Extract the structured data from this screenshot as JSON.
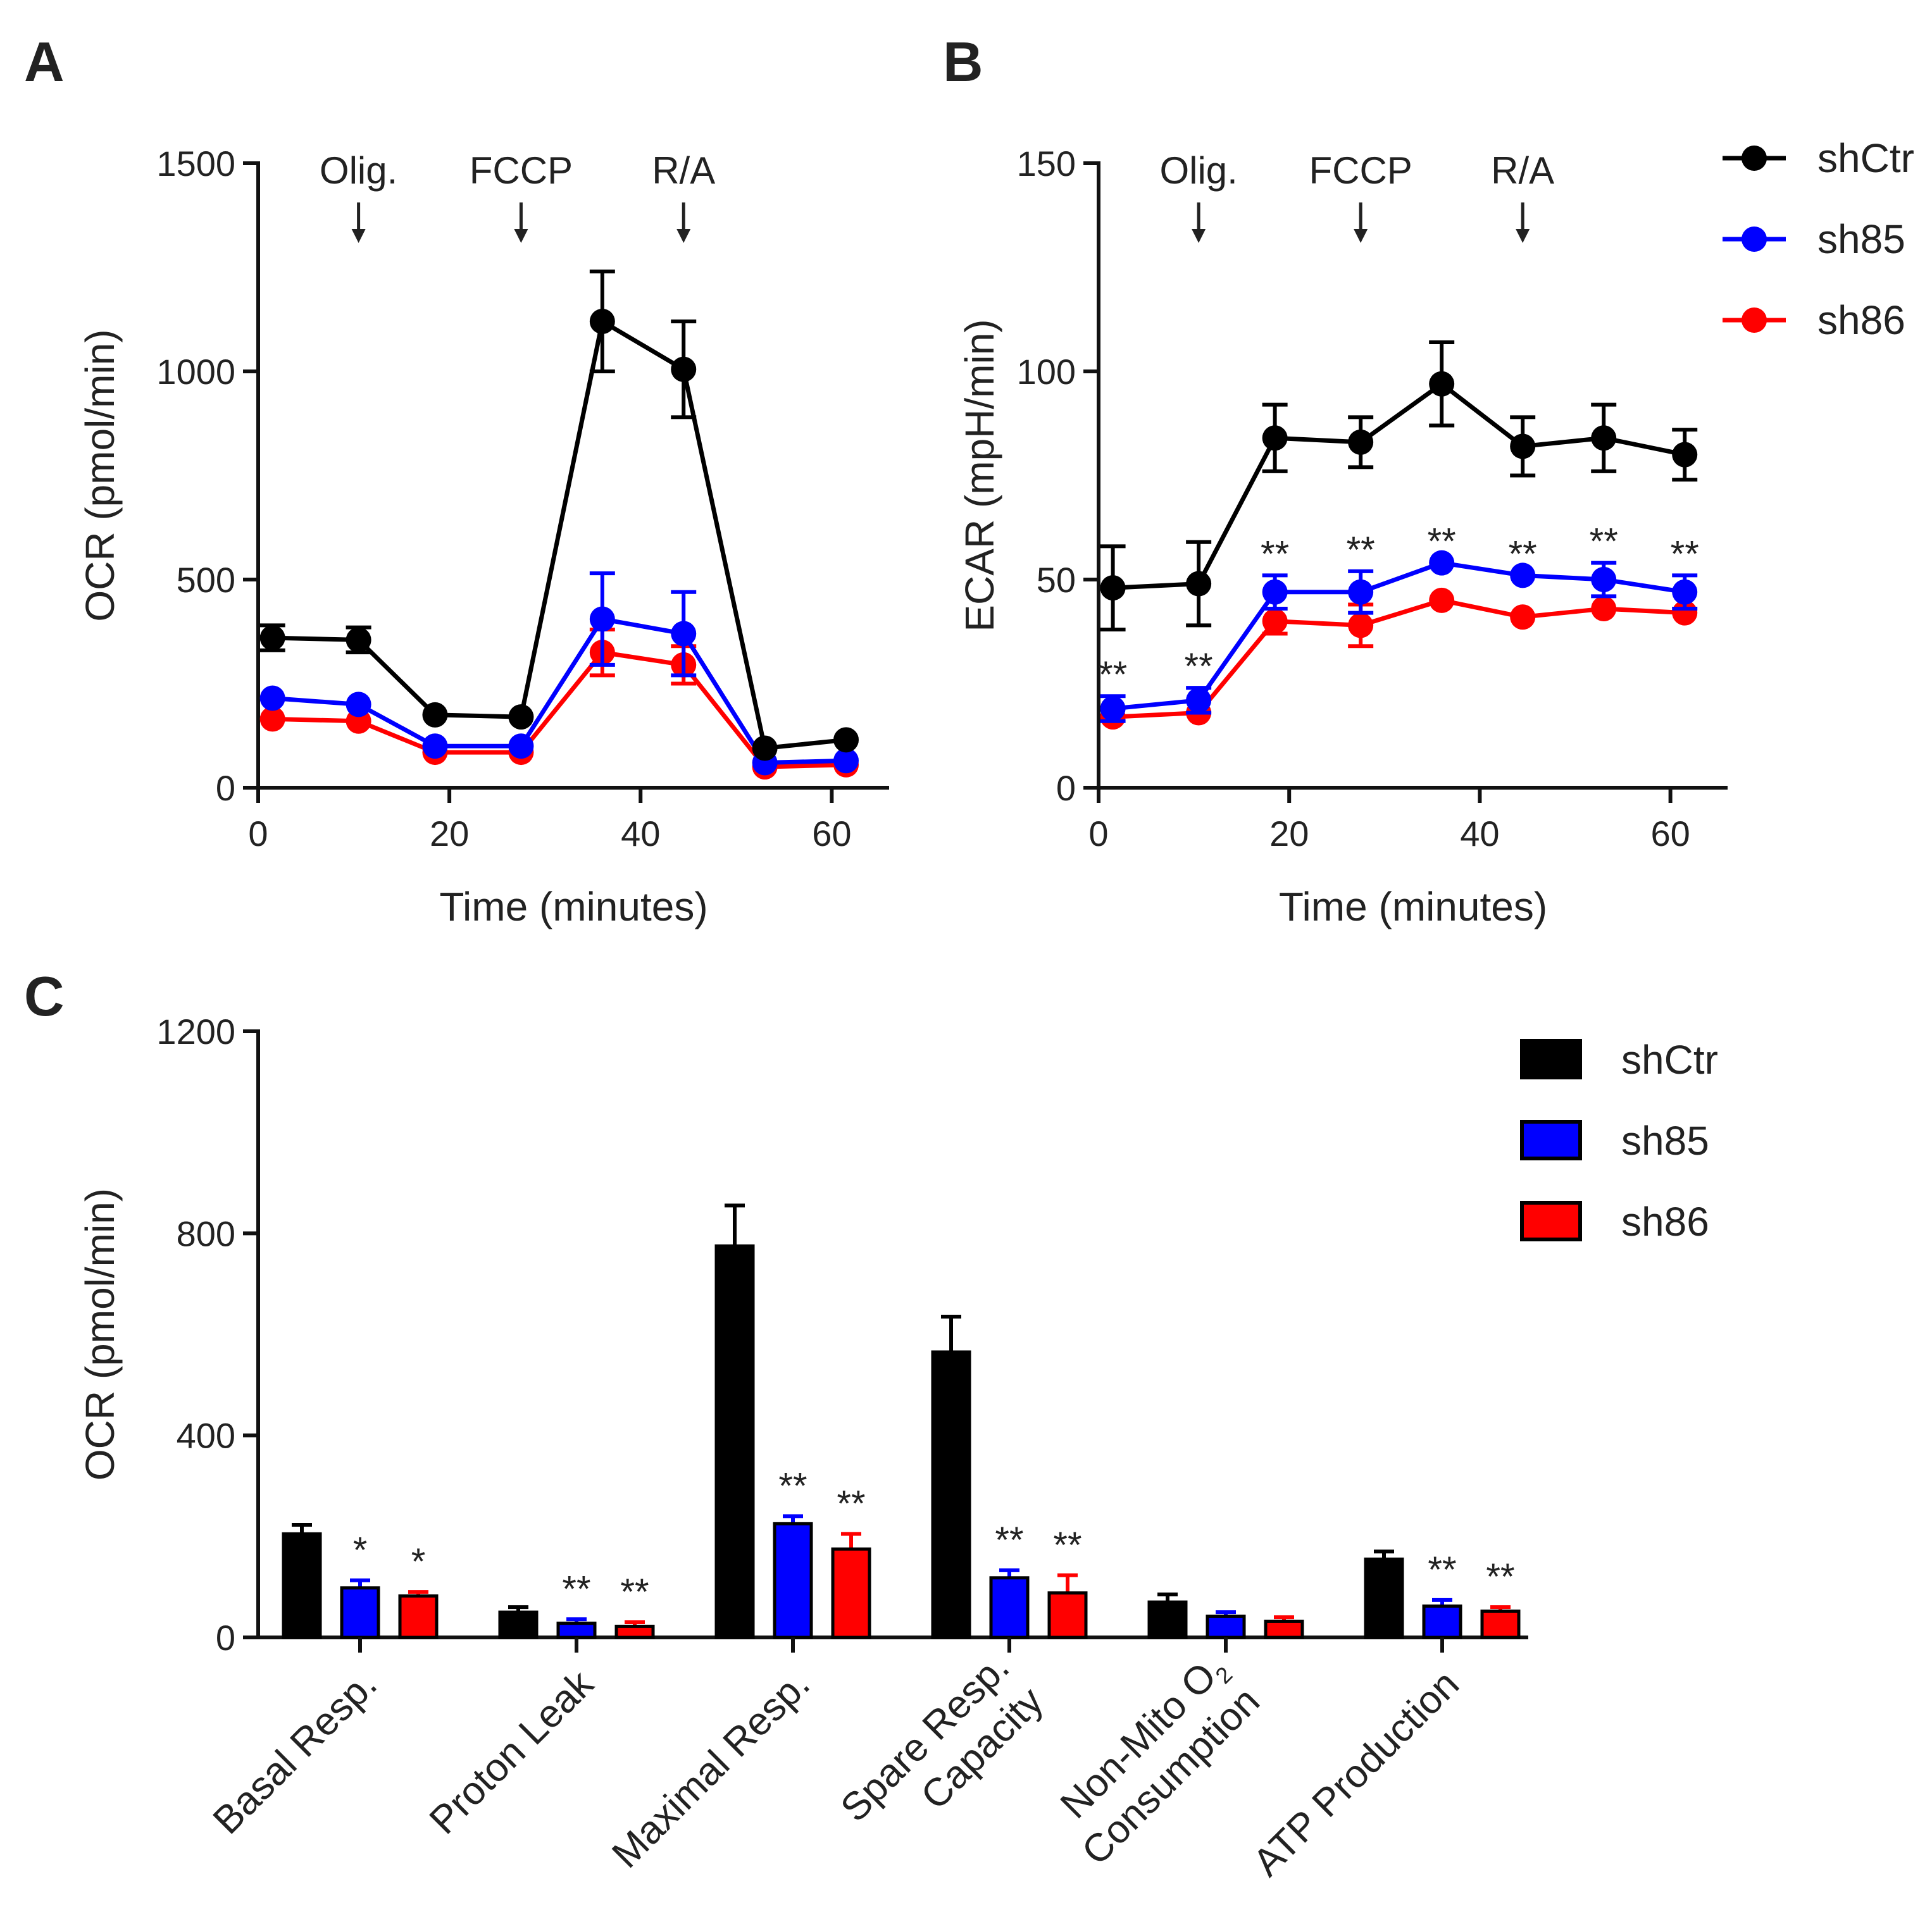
{
  "chart_data": [
    {
      "panel": "A",
      "type": "line",
      "title": "",
      "xlabel": "Time (minutes)",
      "ylabel": "OCR (pmol/min)",
      "xlim": [
        0,
        66
      ],
      "ylim": [
        0,
        1500
      ],
      "xticks": [
        "0",
        "20",
        "40",
        "60"
      ],
      "yticks": [
        "0",
        "500",
        "1000",
        "1500"
      ],
      "injections": [
        {
          "label": "Olig.",
          "x": 10.5
        },
        {
          "label": "FCCP",
          "x": 27.5
        },
        {
          "label": "R/A",
          "x": 44.5
        }
      ],
      "x": [
        1.5,
        10.5,
        18.5,
        27.5,
        36,
        44.5,
        53,
        61.5
      ],
      "series": [
        {
          "name": "shCtr",
          "color": "#000000",
          "values": [
            360,
            355,
            175,
            170,
            1120,
            1005,
            95,
            115
          ],
          "err": [
            30,
            30,
            0,
            0,
            120,
            115,
            0,
            0
          ]
        },
        {
          "name": "sh85",
          "color": "#0000ff",
          "values": [
            215,
            200,
            100,
            100,
            405,
            370,
            60,
            65
          ],
          "err": [
            0,
            0,
            0,
            0,
            110,
            100,
            0,
            0
          ]
        },
        {
          "name": "sh86",
          "color": "#ff0000",
          "values": [
            165,
            160,
            85,
            85,
            325,
            295,
            50,
            55
          ],
          "err": [
            0,
            0,
            0,
            0,
            55,
            45,
            0,
            0
          ]
        }
      ],
      "legend": "none"
    },
    {
      "panel": "B",
      "type": "line",
      "title": "",
      "xlabel": "Time (minutes)",
      "ylabel": "ECAR (mpH/min)",
      "xlim": [
        0,
        66
      ],
      "ylim": [
        0,
        150
      ],
      "xticks": [
        "0",
        "20",
        "40",
        "60"
      ],
      "yticks": [
        "0",
        "50",
        "100",
        "150"
      ],
      "injections": [
        {
          "label": "Olig.",
          "x": 10.5
        },
        {
          "label": "FCCP",
          "x": 27.5
        },
        {
          "label": "R/A",
          "x": 44.5
        }
      ],
      "x": [
        1.5,
        10.5,
        18.5,
        27.5,
        36,
        44.5,
        53,
        61.5
      ],
      "series": [
        {
          "name": "shCtr",
          "color": "#000000",
          "values": [
            48,
            49,
            84,
            83,
            97,
            82,
            84,
            80
          ],
          "err": [
            10,
            10,
            8,
            6,
            10,
            7,
            8,
            6
          ]
        },
        {
          "name": "sh85",
          "color": "#0000ff",
          "values": [
            19,
            21,
            47,
            47,
            54,
            51,
            50,
            47
          ],
          "err": [
            3,
            3,
            4,
            5,
            0,
            0,
            4,
            4
          ]
        },
        {
          "name": "sh86",
          "color": "#ff0000",
          "values": [
            17,
            18,
            40,
            39,
            45,
            41,
            43,
            42
          ],
          "err": [
            0,
            0,
            3,
            5,
            0,
            0,
            0,
            0
          ]
        }
      ],
      "significance": [
        "**",
        "**",
        "**",
        "**",
        "**",
        "**",
        "**",
        "**"
      ],
      "legend": "right"
    },
    {
      "panel": "C",
      "type": "bar",
      "title": "",
      "xlabel": "",
      "ylabel": "OCR (pmol/min)",
      "ylim": [
        0,
        1200
      ],
      "yticks": [
        "0",
        "400",
        "800",
        "1200"
      ],
      "categories": [
        [
          "Basal Resp."
        ],
        [
          "Proton Leak"
        ],
        [
          "Maximal Resp."
        ],
        [
          "Spare Resp.",
          "Capacity"
        ],
        [
          "Non-Mito O",
          "Consumption"
        ],
        [
          "ATP Production"
        ]
      ],
      "subscript_o2": "2",
      "series": [
        {
          "name": "shCtr",
          "color": "#000000",
          "values": [
            205,
            50,
            775,
            565,
            70,
            155
          ],
          "err": [
            18,
            10,
            80,
            70,
            15,
            15
          ]
        },
        {
          "name": "sh85",
          "color": "#0000ff",
          "values": [
            98,
            28,
            225,
            118,
            42,
            62
          ],
          "err": [
            15,
            8,
            15,
            15,
            8,
            12
          ]
        },
        {
          "name": "sh86",
          "color": "#ff0000",
          "values": [
            82,
            22,
            175,
            88,
            32,
            52
          ],
          "err": [
            8,
            8,
            30,
            35,
            8,
            8
          ]
        }
      ],
      "significance": [
        {
          "shCtr": "",
          "sh85": "*",
          "sh86": "*"
        },
        {
          "shCtr": "",
          "sh85": "**",
          "sh86": "**"
        },
        {
          "shCtr": "",
          "sh85": "**",
          "sh86": "**"
        },
        {
          "shCtr": "",
          "sh85": "**",
          "sh86": "**"
        },
        {
          "shCtr": "",
          "sh85": "",
          "sh86": ""
        },
        {
          "shCtr": "",
          "sh85": "**",
          "sh86": "**"
        }
      ],
      "legend": "top-right"
    }
  ]
}
